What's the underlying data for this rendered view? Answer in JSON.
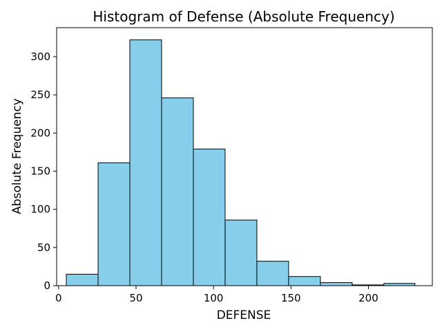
{
  "chart_data": {
    "type": "bar",
    "subtype": "histogram",
    "title": "Histogram of Defense (Absolute Frequency)",
    "xlabel": "DEFENSE",
    "ylabel": "Absolute Frequency",
    "bin_edges": [
      5,
      25.5,
      46,
      66.5,
      87,
      107.5,
      128,
      148.5,
      169,
      189.5,
      210,
      230
    ],
    "values": [
      15,
      161,
      322,
      246,
      179,
      86,
      32,
      12,
      4,
      1,
      3
    ],
    "xlim": [
      -1.25,
      241.25
    ],
    "ylim": [
      0,
      338
    ],
    "xticks": [
      0,
      50,
      100,
      150,
      200
    ],
    "yticks": [
      0,
      50,
      100,
      150,
      200,
      250,
      300
    ],
    "grid": false,
    "bar_color": "#87ceeb",
    "edge_color": "#000000"
  }
}
